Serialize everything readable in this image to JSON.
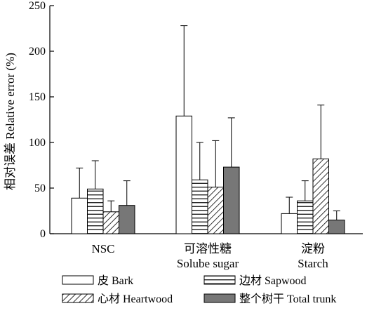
{
  "chart_data": {
    "type": "bar",
    "ylabel": "相对误差 Relative error (%)",
    "ylim": [
      0,
      250
    ],
    "yticks": [
      0,
      50,
      100,
      150,
      200,
      250
    ],
    "grid": false,
    "legend_position": "bottom",
    "categories": [
      {
        "line1": "NSC",
        "line2": ""
      },
      {
        "line1": "可溶性糖",
        "line2": "Solube sugar"
      },
      {
        "line1": "淀粉",
        "line2": "Starch"
      }
    ],
    "series": [
      {
        "name": "皮 Bark",
        "pattern": "white",
        "values": [
          39,
          129,
          22
        ],
        "errors": [
          33,
          99,
          18
        ]
      },
      {
        "name": "边材 Sapwood",
        "pattern": "horizontal-lines",
        "values": [
          49,
          59,
          36
        ],
        "errors": [
          31,
          41,
          22
        ]
      },
      {
        "name": "心材 Heartwood",
        "pattern": "diagonal-hatch",
        "values": [
          24,
          51,
          82
        ],
        "errors": [
          12,
          51,
          59
        ]
      },
      {
        "name": "整个树干 Total trunk",
        "pattern": "gray",
        "values": [
          31,
          73,
          15
        ],
        "errors": [
          27,
          54,
          10
        ]
      }
    ]
  }
}
